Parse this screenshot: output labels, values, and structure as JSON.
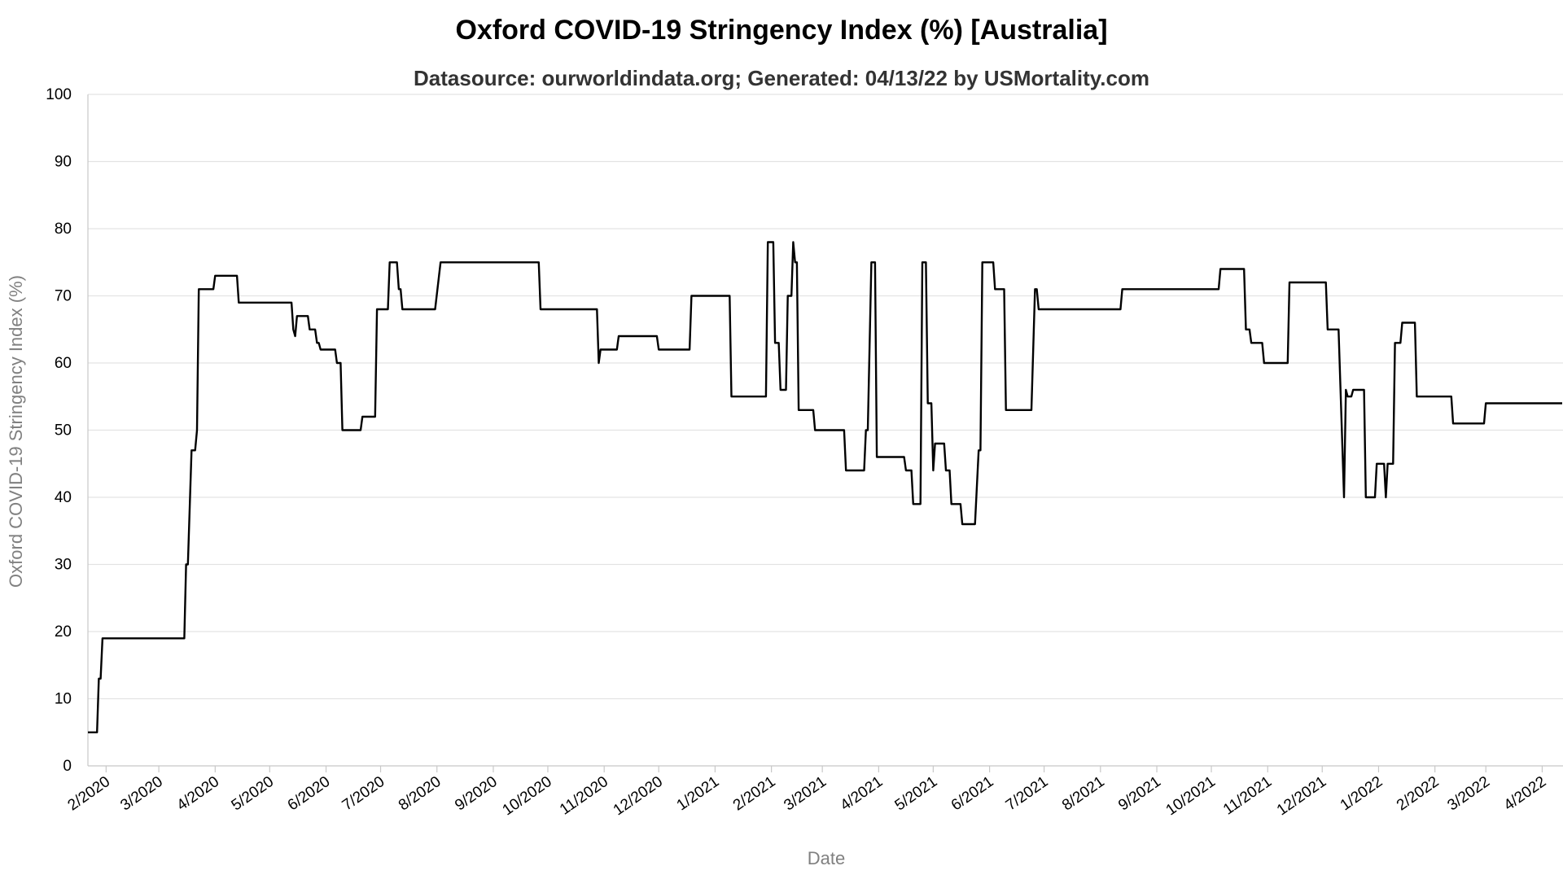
{
  "chart_data": {
    "type": "line",
    "title": "Oxford COVID-19 Stringency Index (%) [Australia]",
    "subtitle": "Datasource: ourworldindata.org; Generated: 04/13/22 by USMortality.com",
    "xlabel": "Date",
    "ylabel": "Oxford COVID-19 Stringency Index (%)",
    "ylim": [
      0,
      100
    ],
    "xlim": [
      "2020-01-22",
      "2022-04-12"
    ],
    "grid": true,
    "yticks": [
      0,
      10,
      20,
      30,
      40,
      50,
      60,
      70,
      80,
      90,
      100
    ],
    "xticks": [
      {
        "date": "2020-02-01",
        "label": "2/2020"
      },
      {
        "date": "2020-03-01",
        "label": "3/2020"
      },
      {
        "date": "2020-04-01",
        "label": "4/2020"
      },
      {
        "date": "2020-05-01",
        "label": "5/2020"
      },
      {
        "date": "2020-06-01",
        "label": "6/2020"
      },
      {
        "date": "2020-07-01",
        "label": "7/2020"
      },
      {
        "date": "2020-08-01",
        "label": "8/2020"
      },
      {
        "date": "2020-09-01",
        "label": "9/2020"
      },
      {
        "date": "2020-10-01",
        "label": "10/2020"
      },
      {
        "date": "2020-11-01",
        "label": "11/2020"
      },
      {
        "date": "2020-12-01",
        "label": "12/2020"
      },
      {
        "date": "2021-01-01",
        "label": "1/2021"
      },
      {
        "date": "2021-02-01",
        "label": "2/2021"
      },
      {
        "date": "2021-03-01",
        "label": "3/2021"
      },
      {
        "date": "2021-04-01",
        "label": "4/2021"
      },
      {
        "date": "2021-05-01",
        "label": "5/2021"
      },
      {
        "date": "2021-06-01",
        "label": "6/2021"
      },
      {
        "date": "2021-07-01",
        "label": "7/2021"
      },
      {
        "date": "2021-08-01",
        "label": "8/2021"
      },
      {
        "date": "2021-09-01",
        "label": "9/2021"
      },
      {
        "date": "2021-10-01",
        "label": "10/2021"
      },
      {
        "date": "2021-11-01",
        "label": "11/2021"
      },
      {
        "date": "2021-12-01",
        "label": "12/2021"
      },
      {
        "date": "2022-01-01",
        "label": "1/2022"
      },
      {
        "date": "2022-02-01",
        "label": "2/2022"
      },
      {
        "date": "2022-03-01",
        "label": "3/2022"
      },
      {
        "date": "2022-04-01",
        "label": "4/2022"
      }
    ],
    "series": [
      {
        "color": "#000000",
        "points": [
          [
            "2020-01-22",
            5
          ],
          [
            "2020-01-27",
            5
          ],
          [
            "2020-01-28",
            13
          ],
          [
            "2020-01-29",
            13
          ],
          [
            "2020-01-30",
            19
          ],
          [
            "2020-03-15",
            19
          ],
          [
            "2020-03-16",
            30
          ],
          [
            "2020-03-17",
            30
          ],
          [
            "2020-03-19",
            47
          ],
          [
            "2020-03-21",
            47
          ],
          [
            "2020-03-22",
            50
          ],
          [
            "2020-03-23",
            71
          ],
          [
            "2020-03-31",
            71
          ],
          [
            "2020-04-01",
            73
          ],
          [
            "2020-04-13",
            73
          ],
          [
            "2020-04-14",
            69
          ],
          [
            "2020-05-13",
            69
          ],
          [
            "2020-05-14",
            65
          ],
          [
            "2020-05-15",
            64
          ],
          [
            "2020-05-16",
            67
          ],
          [
            "2020-05-22",
            67
          ],
          [
            "2020-05-23",
            65
          ],
          [
            "2020-05-26",
            65
          ],
          [
            "2020-05-27",
            63
          ],
          [
            "2020-05-28",
            63
          ],
          [
            "2020-05-29",
            62
          ],
          [
            "2020-06-06",
            62
          ],
          [
            "2020-06-07",
            60
          ],
          [
            "2020-06-09",
            60
          ],
          [
            "2020-06-10",
            50
          ],
          [
            "2020-06-20",
            50
          ],
          [
            "2020-06-21",
            52
          ],
          [
            "2020-06-28",
            52
          ],
          [
            "2020-06-29",
            68
          ],
          [
            "2020-07-05",
            68
          ],
          [
            "2020-07-06",
            75
          ],
          [
            "2020-07-10",
            75
          ],
          [
            "2020-07-11",
            71
          ],
          [
            "2020-07-12",
            71
          ],
          [
            "2020-07-13",
            68
          ],
          [
            "2020-07-31",
            68
          ],
          [
            "2020-08-03",
            75
          ],
          [
            "2020-09-26",
            75
          ],
          [
            "2020-09-27",
            68
          ],
          [
            "2020-10-28",
            68
          ],
          [
            "2020-10-29",
            60
          ],
          [
            "2020-10-30",
            62
          ],
          [
            "2020-11-08",
            62
          ],
          [
            "2020-11-09",
            64
          ],
          [
            "2020-11-30",
            64
          ],
          [
            "2020-12-01",
            62
          ],
          [
            "2020-12-18",
            62
          ],
          [
            "2020-12-19",
            70
          ],
          [
            "2021-01-09",
            70
          ],
          [
            "2021-01-10",
            55
          ],
          [
            "2021-01-29",
            55
          ],
          [
            "2021-01-30",
            78
          ],
          [
            "2021-02-02",
            78
          ],
          [
            "2021-02-03",
            63
          ],
          [
            "2021-02-05",
            63
          ],
          [
            "2021-02-06",
            56
          ],
          [
            "2021-02-09",
            56
          ],
          [
            "2021-02-10",
            70
          ],
          [
            "2021-02-12",
            70
          ],
          [
            "2021-02-13",
            78
          ],
          [
            "2021-02-14",
            75
          ],
          [
            "2021-02-15",
            75
          ],
          [
            "2021-02-16",
            53
          ],
          [
            "2021-02-24",
            53
          ],
          [
            "2021-02-25",
            50
          ],
          [
            "2021-03-13",
            50
          ],
          [
            "2021-03-14",
            44
          ],
          [
            "2021-03-24",
            44
          ],
          [
            "2021-03-25",
            50
          ],
          [
            "2021-03-26",
            50
          ],
          [
            "2021-03-28",
            75
          ],
          [
            "2021-03-30",
            75
          ],
          [
            "2021-03-31",
            46
          ],
          [
            "2021-04-15",
            46
          ],
          [
            "2021-04-16",
            44
          ],
          [
            "2021-04-19",
            44
          ],
          [
            "2021-04-20",
            39
          ],
          [
            "2021-04-24",
            39
          ],
          [
            "2021-04-25",
            75
          ],
          [
            "2021-04-27",
            75
          ],
          [
            "2021-04-28",
            54
          ],
          [
            "2021-04-30",
            54
          ],
          [
            "2021-05-01",
            44
          ],
          [
            "2021-05-02",
            48
          ],
          [
            "2021-05-07",
            48
          ],
          [
            "2021-05-08",
            44
          ],
          [
            "2021-05-10",
            44
          ],
          [
            "2021-05-11",
            39
          ],
          [
            "2021-05-16",
            39
          ],
          [
            "2021-05-17",
            36
          ],
          [
            "2021-05-24",
            36
          ],
          [
            "2021-05-26",
            47
          ],
          [
            "2021-05-27",
            47
          ],
          [
            "2021-05-28",
            75
          ],
          [
            "2021-06-03",
            75
          ],
          [
            "2021-06-04",
            71
          ],
          [
            "2021-06-09",
            71
          ],
          [
            "2021-06-10",
            53
          ],
          [
            "2021-06-24",
            53
          ],
          [
            "2021-06-26",
            71
          ],
          [
            "2021-06-27",
            71
          ],
          [
            "2021-06-28",
            68
          ],
          [
            "2021-08-12",
            68
          ],
          [
            "2021-08-13",
            71
          ],
          [
            "2021-10-05",
            71
          ],
          [
            "2021-10-06",
            74
          ],
          [
            "2021-10-19",
            74
          ],
          [
            "2021-10-20",
            65
          ],
          [
            "2021-10-22",
            65
          ],
          [
            "2021-10-23",
            63
          ],
          [
            "2021-10-29",
            63
          ],
          [
            "2021-10-30",
            60
          ],
          [
            "2021-11-12",
            60
          ],
          [
            "2021-11-13",
            72
          ],
          [
            "2021-12-03",
            72
          ],
          [
            "2021-12-04",
            65
          ],
          [
            "2021-12-10",
            65
          ],
          [
            "2021-12-13",
            40
          ],
          [
            "2021-12-14",
            56
          ],
          [
            "2021-12-15",
            55
          ],
          [
            "2021-12-17",
            55
          ],
          [
            "2021-12-18",
            56
          ],
          [
            "2021-12-24",
            56
          ],
          [
            "2021-12-25",
            40
          ],
          [
            "2021-12-30",
            40
          ],
          [
            "2021-12-31",
            45
          ],
          [
            "2022-01-04",
            45
          ],
          [
            "2022-01-05",
            40
          ],
          [
            "2022-01-06",
            45
          ],
          [
            "2022-01-09",
            45
          ],
          [
            "2022-01-10",
            63
          ],
          [
            "2022-01-13",
            63
          ],
          [
            "2022-01-14",
            66
          ],
          [
            "2022-01-21",
            66
          ],
          [
            "2022-01-22",
            55
          ],
          [
            "2022-02-10",
            55
          ],
          [
            "2022-02-11",
            51
          ],
          [
            "2022-02-28",
            51
          ],
          [
            "2022-03-01",
            54
          ],
          [
            "2022-04-12",
            54
          ]
        ]
      }
    ]
  }
}
